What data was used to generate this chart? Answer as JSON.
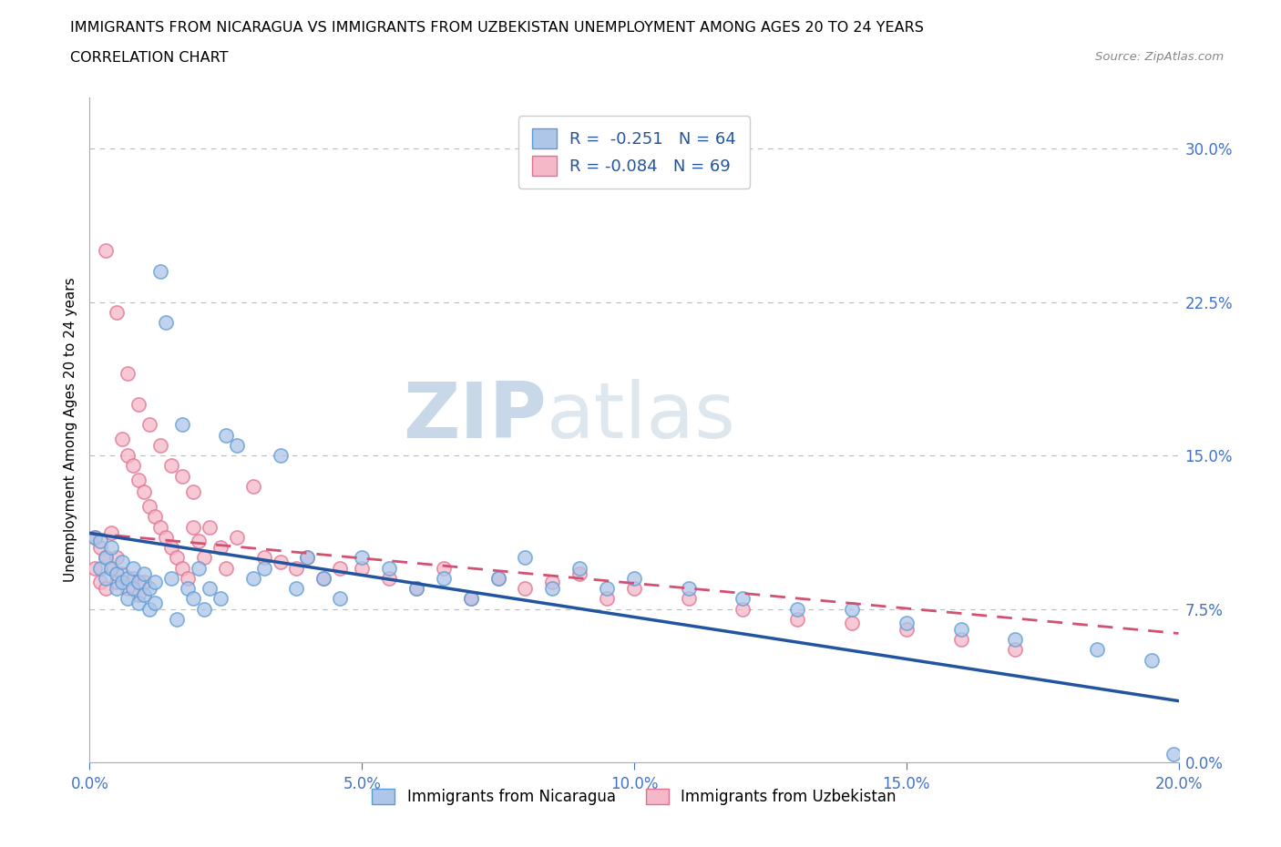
{
  "title_line1": "IMMIGRANTS FROM NICARAGUA VS IMMIGRANTS FROM UZBEKISTAN UNEMPLOYMENT AMONG AGES 20 TO 24 YEARS",
  "title_line2": "CORRELATION CHART",
  "source_text": "Source: ZipAtlas.com",
  "ylabel": "Unemployment Among Ages 20 to 24 years",
  "xmin": 0.0,
  "xmax": 0.2,
  "ymin": 0.0,
  "ymax": 0.325,
  "right_yticks": [
    0.0,
    0.075,
    0.15,
    0.225,
    0.3
  ],
  "right_yticklabels": [
    "0.0%",
    "7.5%",
    "15.0%",
    "22.5%",
    "30.0%"
  ],
  "xticks": [
    0.0,
    0.05,
    0.1,
    0.15,
    0.2
  ],
  "xticklabels": [
    "0.0%",
    "5.0%",
    "10.0%",
    "15.0%",
    "20.0%"
  ],
  "nicaragua_color": "#aec6e8",
  "nicaragua_edge": "#5b9bd5",
  "uzbekistan_color": "#f5b8c8",
  "uzbekistan_edge": "#e07090",
  "trend_nicaragua_color": "#2155a0",
  "trend_uzbekistan_color": "#d45070",
  "legend_nicaragua_label": "R =  -0.251   N = 64",
  "legend_uzbekistan_label": "R = -0.084   N = 69",
  "legend_nicaragua_display": "Immigrants from Nicaragua",
  "legend_uzbekistan_display": "Immigrants from Uzbekistan",
  "watermark_zip": "ZIP",
  "watermark_atlas": "atlas",
  "nic_trend_x0": 0.0,
  "nic_trend_y0": 0.112,
  "nic_trend_x1": 0.2,
  "nic_trend_y1": 0.03,
  "uzb_trend_x0": 0.0,
  "uzb_trend_y0": 0.112,
  "uzb_trend_x1": 0.2,
  "uzb_trend_y1": 0.063,
  "nicaragua_x": [
    0.001,
    0.002,
    0.002,
    0.003,
    0.003,
    0.004,
    0.004,
    0.005,
    0.005,
    0.006,
    0.006,
    0.007,
    0.007,
    0.008,
    0.008,
    0.009,
    0.009,
    0.01,
    0.01,
    0.011,
    0.011,
    0.012,
    0.012,
    0.013,
    0.014,
    0.015,
    0.016,
    0.017,
    0.018,
    0.019,
    0.02,
    0.021,
    0.022,
    0.024,
    0.025,
    0.027,
    0.03,
    0.032,
    0.035,
    0.038,
    0.04,
    0.043,
    0.046,
    0.05,
    0.055,
    0.06,
    0.065,
    0.07,
    0.075,
    0.08,
    0.085,
    0.09,
    0.095,
    0.1,
    0.11,
    0.12,
    0.13,
    0.14,
    0.15,
    0.16,
    0.17,
    0.185,
    0.195,
    0.199
  ],
  "nicaragua_y": [
    0.11,
    0.095,
    0.108,
    0.1,
    0.09,
    0.095,
    0.105,
    0.085,
    0.092,
    0.088,
    0.098,
    0.08,
    0.09,
    0.085,
    0.095,
    0.078,
    0.088,
    0.082,
    0.092,
    0.075,
    0.085,
    0.078,
    0.088,
    0.24,
    0.215,
    0.09,
    0.07,
    0.165,
    0.085,
    0.08,
    0.095,
    0.075,
    0.085,
    0.08,
    0.16,
    0.155,
    0.09,
    0.095,
    0.15,
    0.085,
    0.1,
    0.09,
    0.08,
    0.1,
    0.095,
    0.085,
    0.09,
    0.08,
    0.09,
    0.1,
    0.085,
    0.095,
    0.085,
    0.09,
    0.085,
    0.08,
    0.075,
    0.075,
    0.068,
    0.065,
    0.06,
    0.055,
    0.05,
    0.004
  ],
  "uzbekistan_x": [
    0.001,
    0.001,
    0.002,
    0.002,
    0.003,
    0.003,
    0.004,
    0.004,
    0.005,
    0.005,
    0.006,
    0.006,
    0.007,
    0.007,
    0.008,
    0.008,
    0.009,
    0.009,
    0.01,
    0.01,
    0.011,
    0.012,
    0.013,
    0.014,
    0.015,
    0.016,
    0.017,
    0.018,
    0.019,
    0.02,
    0.021,
    0.022,
    0.024,
    0.025,
    0.027,
    0.03,
    0.032,
    0.035,
    0.038,
    0.04,
    0.043,
    0.046,
    0.05,
    0.055,
    0.06,
    0.065,
    0.07,
    0.075,
    0.08,
    0.085,
    0.09,
    0.095,
    0.1,
    0.11,
    0.12,
    0.13,
    0.14,
    0.15,
    0.16,
    0.17,
    0.003,
    0.005,
    0.007,
    0.009,
    0.011,
    0.013,
    0.015,
    0.017,
    0.019
  ],
  "uzbekistan_y": [
    0.11,
    0.095,
    0.105,
    0.088,
    0.1,
    0.085,
    0.095,
    0.112,
    0.088,
    0.1,
    0.158,
    0.092,
    0.15,
    0.085,
    0.145,
    0.09,
    0.138,
    0.082,
    0.132,
    0.088,
    0.125,
    0.12,
    0.115,
    0.11,
    0.105,
    0.1,
    0.095,
    0.09,
    0.115,
    0.108,
    0.1,
    0.115,
    0.105,
    0.095,
    0.11,
    0.135,
    0.1,
    0.098,
    0.095,
    0.1,
    0.09,
    0.095,
    0.095,
    0.09,
    0.085,
    0.095,
    0.08,
    0.09,
    0.085,
    0.088,
    0.092,
    0.08,
    0.085,
    0.08,
    0.075,
    0.07,
    0.068,
    0.065,
    0.06,
    0.055,
    0.25,
    0.22,
    0.19,
    0.175,
    0.165,
    0.155,
    0.145,
    0.14,
    0.132
  ]
}
